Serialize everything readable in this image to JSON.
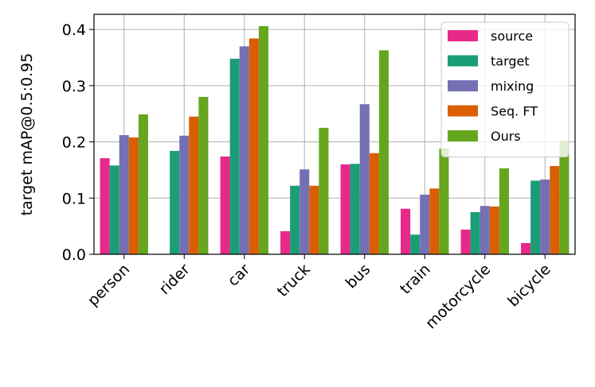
{
  "chart_data": {
    "type": "bar",
    "ylabel": "target mAP@0.5:0.95",
    "categories": [
      "person",
      "rider",
      "car",
      "truck",
      "bus",
      "train",
      "motorcycle",
      "bicycle"
    ],
    "series": [
      {
        "name": "source",
        "color": "#e7298a",
        "values": [
          0.171,
          0,
          0.174,
          0.041,
          0.16,
          0.081,
          0.044,
          0.02
        ]
      },
      {
        "name": "target",
        "color": "#1b9e77",
        "values": [
          0.158,
          0.184,
          0.348,
          0.122,
          0.161,
          0.035,
          0.075,
          0.131
        ]
      },
      {
        "name": "mixing",
        "color": "#7570b3",
        "values": [
          0.212,
          0.211,
          0.37,
          0.151,
          0.267,
          0.106,
          0.086,
          0.133
        ]
      },
      {
        "name": "Seq. FT",
        "color": "#d95f02",
        "values": [
          0.208,
          0.245,
          0.384,
          0.122,
          0.18,
          0.117,
          0.085,
          0.157
        ]
      },
      {
        "name": "Ours",
        "color": "#66a61e",
        "values": [
          0.249,
          0.28,
          0.406,
          0.225,
          0.363,
          0.188,
          0.153,
          0.202
        ]
      }
    ],
    "ylim": [
      0,
      0.427
    ],
    "yticks": [
      {
        "value": 0,
        "label": "0.0"
      },
      0.1,
      0.2,
      0.3,
      0.4
    ],
    "grid": true,
    "legend": "upper right"
  }
}
